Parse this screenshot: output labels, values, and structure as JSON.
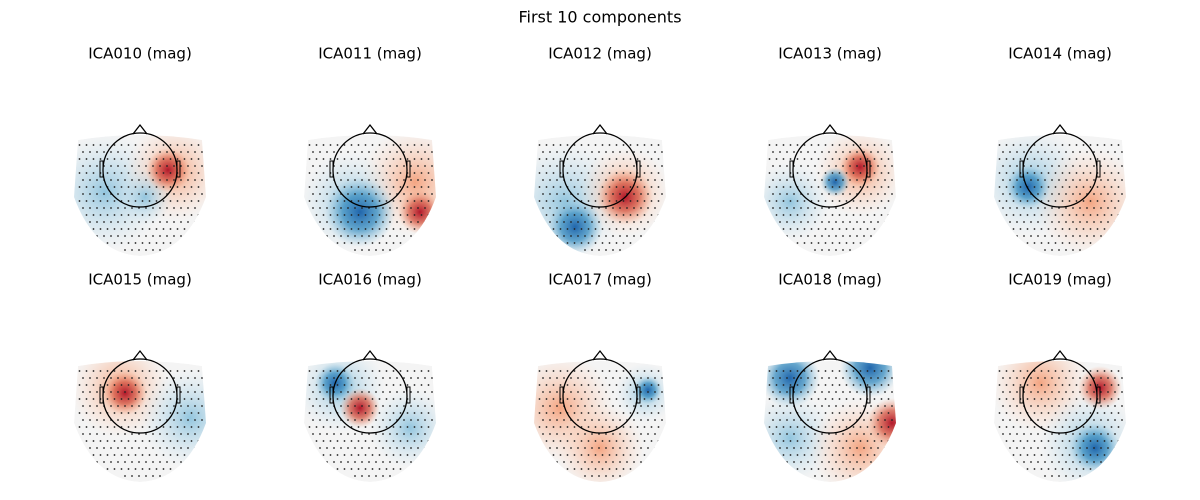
{
  "figure": {
    "title": "First 10 components",
    "panels": [
      {
        "label": "ICA010 (mag)"
      },
      {
        "label": "ICA011 (mag)"
      },
      {
        "label": "ICA012 (mag)"
      },
      {
        "label": "ICA013 (mag)"
      },
      {
        "label": "ICA014 (mag)"
      },
      {
        "label": "ICA015 (mag)"
      },
      {
        "label": "ICA016 (mag)"
      },
      {
        "label": "ICA017 (mag)"
      },
      {
        "label": "ICA018 (mag)"
      },
      {
        "label": "ICA019 (mag)"
      }
    ]
  }
}
